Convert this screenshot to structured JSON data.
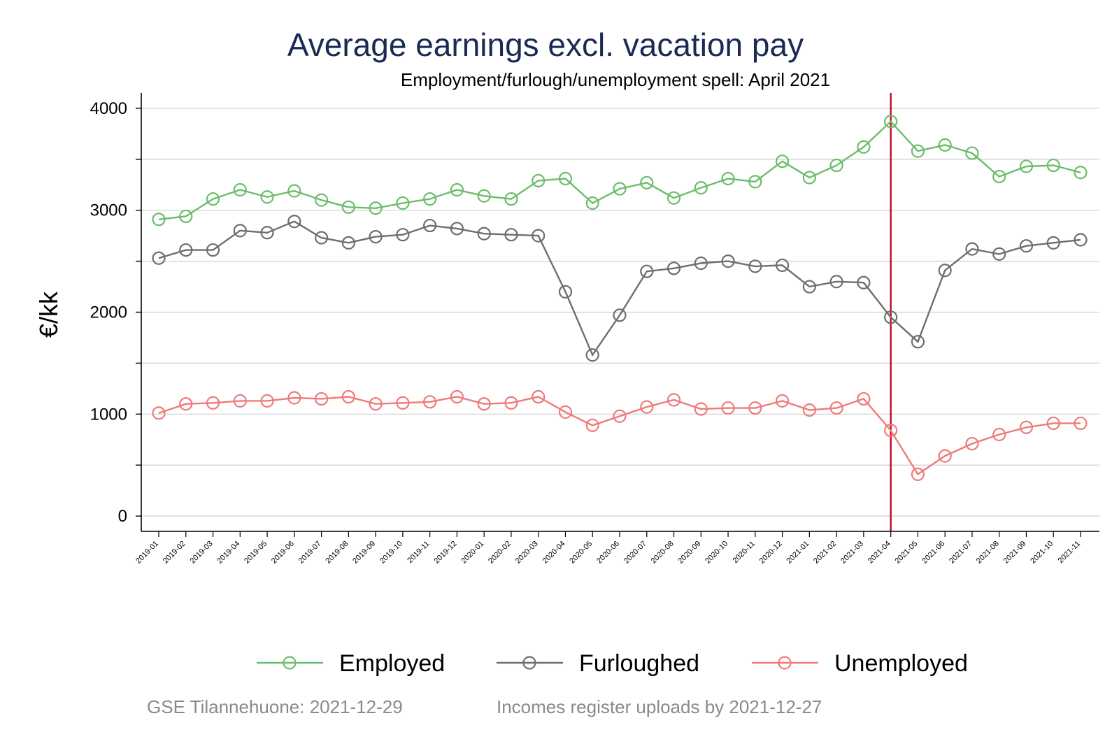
{
  "chart_data": {
    "type": "line",
    "title": "Average earnings excl. vacation pay",
    "subtitle": "Employment/furlough/unemployment spell: April 2021",
    "ylabel": "€/kk",
    "xlabel": "",
    "ylim": [
      -150,
      4150
    ],
    "yticks": [
      0,
      1000,
      2000,
      3000,
      4000
    ],
    "grid": true,
    "legend_position": "bottom",
    "reference_line": {
      "x": "2021-04",
      "color": "#c0102a"
    },
    "x": [
      "2019-01",
      "2019-02",
      "2019-03",
      "2019-04",
      "2019-05",
      "2019-06",
      "2019-07",
      "2019-08",
      "2019-09",
      "2019-10",
      "2019-11",
      "2019-12",
      "2020-01",
      "2020-02",
      "2020-03",
      "2020-04",
      "2020-05",
      "2020-06",
      "2020-07",
      "2020-08",
      "2020-09",
      "2020-10",
      "2020-11",
      "2020-12",
      "2021-01",
      "2021-02",
      "2021-03",
      "2021-04",
      "2021-05",
      "2021-06",
      "2021-07",
      "2021-08",
      "2021-09",
      "2021-10",
      "2021-11"
    ],
    "series": [
      {
        "name": "Employed",
        "color": "#6cbd6b",
        "values": [
          2910,
          2940,
          3110,
          3200,
          3130,
          3190,
          3100,
          3030,
          3020,
          3070,
          3110,
          3200,
          3140,
          3110,
          3290,
          3310,
          3070,
          3210,
          3270,
          3120,
          3220,
          3310,
          3280,
          3480,
          3320,
          3440,
          3620,
          3870,
          3580,
          3640,
          3560,
          3330,
          3430,
          3440,
          3370
        ]
      },
      {
        "name": "Furloughed",
        "color": "#6e6e6e",
        "values": [
          2530,
          2610,
          2610,
          2800,
          2780,
          2890,
          2730,
          2680,
          2740,
          2760,
          2850,
          2820,
          2770,
          2760,
          2750,
          2200,
          1580,
          1970,
          2400,
          2430,
          2480,
          2500,
          2450,
          2460,
          2250,
          2300,
          2290,
          1950,
          1710,
          2410,
          2620,
          2570,
          2650,
          2680,
          2710
        ]
      },
      {
        "name": "Unemployed",
        "color": "#f07a7a",
        "values": [
          1010,
          1100,
          1110,
          1130,
          1130,
          1160,
          1150,
          1170,
          1100,
          1110,
          1120,
          1170,
          1100,
          1110,
          1170,
          1020,
          890,
          980,
          1070,
          1140,
          1050,
          1060,
          1060,
          1130,
          1040,
          1060,
          1150,
          840,
          410,
          590,
          710,
          800,
          870,
          910,
          910
        ]
      }
    ]
  },
  "footer": {
    "source": "GSE Tilannehuone: 2021-12-29",
    "note": "Incomes register uploads by 2021-12-27"
  }
}
